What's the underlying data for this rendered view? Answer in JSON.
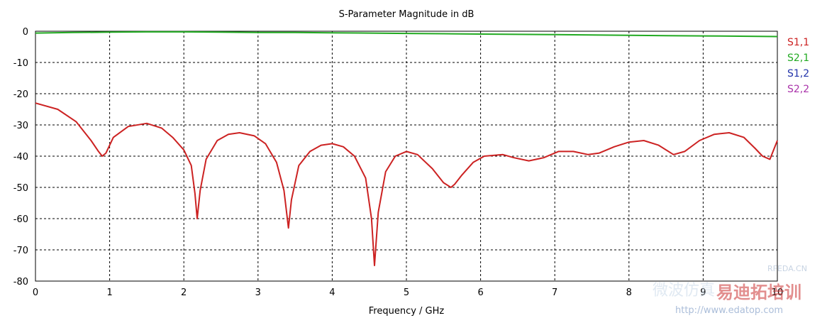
{
  "chart_data": {
    "type": "line",
    "title": "S-Parameter Magnitude in dB",
    "xlabel": "Frequency / GHz",
    "ylabel": "",
    "xlim": [
      0,
      10
    ],
    "ylim": [
      -80,
      0
    ],
    "xticks": [
      0,
      1,
      2,
      3,
      4,
      5,
      6,
      7,
      8,
      9,
      10
    ],
    "yticks": [
      0,
      -10,
      -20,
      -30,
      -40,
      -50,
      -60,
      -70,
      -80
    ],
    "grid": true,
    "legend_position": "right",
    "series": [
      {
        "name": "S1,1",
        "color": "#cc2222",
        "x": [
          0,
          0.3,
          0.55,
          0.75,
          0.85,
          0.9,
          0.95,
          1.05,
          1.25,
          1.5,
          1.7,
          1.85,
          2.0,
          2.1,
          2.15,
          2.18,
          2.22,
          2.3,
          2.45,
          2.6,
          2.75,
          2.95,
          3.1,
          3.25,
          3.35,
          3.41,
          3.45,
          3.55,
          3.7,
          3.85,
          4.0,
          4.15,
          4.3,
          4.45,
          4.53,
          4.57,
          4.62,
          4.72,
          4.85,
          5.0,
          5.15,
          5.35,
          5.5,
          5.6,
          5.65,
          5.75,
          5.9,
          6.05,
          6.3,
          6.45,
          6.65,
          6.85,
          7.05,
          7.25,
          7.45,
          7.6,
          7.8,
          8.0,
          8.2,
          8.4,
          8.6,
          8.75,
          8.95,
          9.15,
          9.35,
          9.55,
          9.7,
          9.8,
          9.9,
          10.0
        ],
        "y": [
          -23,
          -25,
          -29,
          -35,
          -38.5,
          -40,
          -39,
          -34,
          -30.5,
          -29.5,
          -31,
          -34,
          -38,
          -43,
          -52,
          -60,
          -51,
          -41,
          -35,
          -33,
          -32.5,
          -33.5,
          -36,
          -42,
          -51,
          -63,
          -54,
          -43,
          -38.5,
          -36.5,
          -36,
          -37,
          -40,
          -47,
          -60,
          -75,
          -58,
          -45,
          -40,
          -38.5,
          -39.5,
          -44,
          -48.5,
          -50,
          -49,
          -46,
          -42,
          -40,
          -39.5,
          -40.5,
          -41.5,
          -40.5,
          -38.5,
          -38.5,
          -39.5,
          -39,
          -37,
          -35.5,
          -35,
          -36.5,
          -39.5,
          -38.5,
          -35,
          -33,
          -32.5,
          -34,
          -37.5,
          -40,
          -41,
          -35
        ]
      },
      {
        "name": "S2,1",
        "color": "#22aa22",
        "x": [
          0,
          0.5,
          1,
          1.5,
          2,
          2.5,
          3,
          3.5,
          4,
          4.5,
          5,
          5.5,
          6,
          6.5,
          7,
          7.5,
          8,
          8.5,
          9,
          9.5,
          10
        ],
        "y": [
          -0.6,
          -0.4,
          -0.3,
          -0.2,
          -0.2,
          -0.3,
          -0.4,
          -0.4,
          -0.5,
          -0.6,
          -0.7,
          -0.8,
          -0.9,
          -1.0,
          -1.1,
          -1.2,
          -1.3,
          -1.4,
          -1.5,
          -1.6,
          -1.7
        ]
      },
      {
        "name": "S1,2",
        "color": "#2233aa",
        "x": [],
        "y": []
      },
      {
        "name": "S2,2",
        "color": "#aa33aa",
        "x": [],
        "y": []
      }
    ]
  },
  "watermark": {
    "site": "RFEDA.CN",
    "brand_cn": "易迪拓培训",
    "url": "http://www.edatop.com",
    "cn_faint": "微波仿真"
  }
}
